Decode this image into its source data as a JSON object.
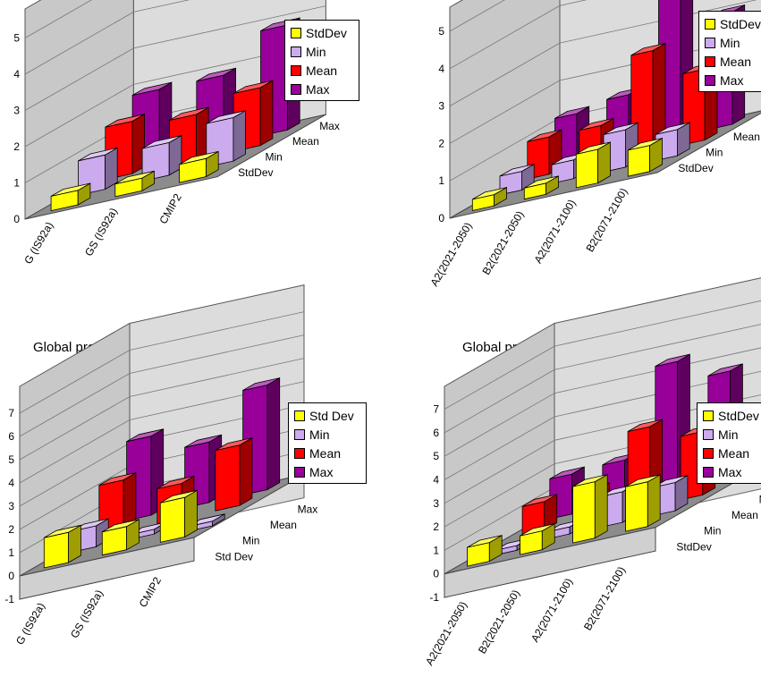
{
  "series_colors": [
    "#ffff00",
    "#ccaaee",
    "#ff0000",
    "#990099"
  ],
  "charts": [
    {
      "title": "",
      "legend": [
        "StdDev",
        "Min",
        "Mean",
        "Max"
      ],
      "chart_data": {
        "type": "bar",
        "title": "",
        "categories": [
          "G (IS92a)",
          "GS (IS92a)",
          "CMIP2"
        ],
        "depth_labels": [
          "StdDev",
          "Min",
          "Mean",
          "Max"
        ],
        "yticks": [
          "0",
          "1",
          "2",
          "3",
          "4",
          "5"
        ],
        "ylim": [
          0,
          5
        ],
        "series": [
          {
            "name": "StdDev",
            "values": [
              0.4,
              0.35,
              0.5
            ]
          },
          {
            "name": "Min",
            "values": [
              0.95,
              0.9,
              1.2
            ]
          },
          {
            "name": "Mean",
            "values": [
              1.45,
              1.25,
              1.6
            ]
          },
          {
            "name": "Max",
            "values": [
              1.9,
              1.9,
              2.9
            ]
          }
        ]
      }
    },
    {
      "title": "",
      "legend": [
        "StdDev",
        "Min",
        "Mean",
        "Max"
      ],
      "chart_data": {
        "type": "bar",
        "title": "",
        "categories": [
          "A2(2021-2050)",
          "B2(2021-2050)",
          "A2(2071-2100)",
          "B2(2071-2100)"
        ],
        "depth_labels": [
          "StdDev",
          "Min",
          "Mean",
          "Max"
        ],
        "yticks": [
          "0",
          "1",
          "2",
          "3",
          "4",
          "5"
        ],
        "ylim": [
          0,
          5
        ],
        "series": [
          {
            "name": "StdDev",
            "values": [
              0.3,
              0.3,
              0.9,
              0.7
            ]
          },
          {
            "name": "Min",
            "values": [
              0.5,
              0.5,
              1.0,
              0.7
            ]
          },
          {
            "name": "Mean",
            "values": [
              1.0,
              1.0,
              2.7,
              1.9
            ]
          },
          {
            "name": "Max",
            "values": [
              1.2,
              1.4,
              4.3,
              3.0
            ]
          }
        ]
      }
    },
    {
      "title": "Global precipitation change (%)",
      "legend": [
        "Std Dev",
        "Min",
        "Mean",
        "Max"
      ],
      "chart_data": {
        "type": "bar",
        "title": "Global precipitation change (%)",
        "categories": [
          "G (IS92a)",
          "GS (IS92a)",
          "CMIP2"
        ],
        "depth_labels": [
          "Std Dev",
          "Min",
          "Mean",
          "Max"
        ],
        "yticks": [
          "-1",
          "0",
          "1",
          "2",
          "3",
          "4",
          "5",
          "6",
          "7"
        ],
        "ylim": [
          -1,
          7
        ],
        "series": [
          {
            "name": "Std Dev",
            "values": [
              1.3,
              1.0,
              1.7
            ]
          },
          {
            "name": "Min",
            "values": [
              0.9,
              0.2,
              -0.2
            ]
          },
          {
            "name": "Mean",
            "values": [
              2.2,
              1.5,
              2.6
            ]
          },
          {
            "name": "Max",
            "values": [
              3.4,
              2.6,
              4.5
            ]
          }
        ]
      }
    },
    {
      "title": "Global precipitation change (%)",
      "legend": [
        "StdDev",
        "Min",
        "Mean",
        "Max"
      ],
      "chart_data": {
        "type": "bar",
        "title": "Global precipitation change (%)",
        "categories": [
          "A2(2021-2050)",
          "B2(2021-2050)",
          "A2(2071-2100)",
          "B2(2071-2100)"
        ],
        "depth_labels": [
          "StdDev",
          "Min",
          "Mean",
          "Max"
        ],
        "yticks": [
          "-1",
          "0",
          "1",
          "2",
          "3",
          "4",
          "5",
          "6",
          "7"
        ],
        "ylim": [
          -1,
          7
        ],
        "series": [
          {
            "name": "StdDev",
            "values": [
              0.8,
              0.8,
              2.4,
              1.9
            ]
          },
          {
            "name": "Min",
            "values": [
              -0.2,
              0.3,
              1.3,
              1.2
            ]
          },
          {
            "name": "Mean",
            "values": [
              1.2,
              1.2,
              3.4,
              2.7
            ]
          },
          {
            "name": "Max",
            "values": [
              1.7,
              1.8,
              5.5,
              4.6
            ]
          }
        ]
      }
    }
  ]
}
